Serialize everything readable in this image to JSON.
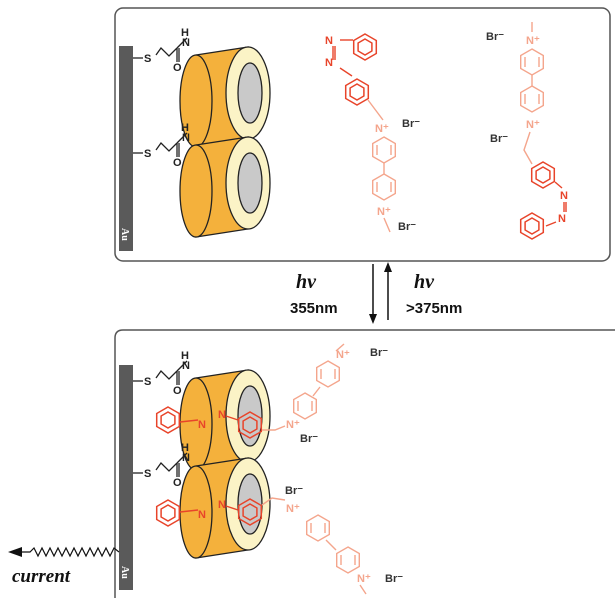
{
  "electrode_label": "Au",
  "bromide_label": "Br⁻",
  "nitrogen_label": "N",
  "pyridinium_label": "N⁺",
  "amide_h_label": "H",
  "amide_n_label": "N",
  "oxygen_label": "O",
  "sulfur_label": "S",
  "arrow_down": {
    "symbol": "hν",
    "wavelength": "355nm"
  },
  "arrow_up": {
    "symbol": "hν",
    "wavelength": ">375nm"
  },
  "current_label": "current",
  "colors": {
    "electrode": "#5a5a5a",
    "cd_outer": "#f4b13c",
    "cd_rim": "#fbf3c6",
    "cd_cavity": "#c9c9c9",
    "azo": "#e8442a",
    "viologen": "#f4a58c",
    "box_border": "#555555"
  }
}
